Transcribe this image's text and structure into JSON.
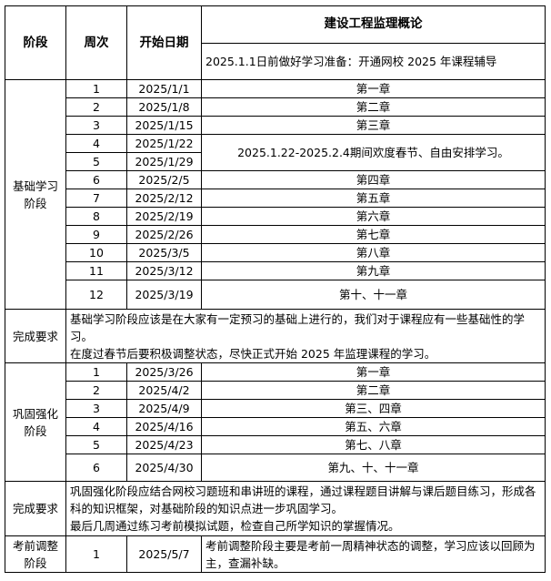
{
  "header": {
    "stage": "阶段",
    "week": "周次",
    "start_date": "开始日期",
    "subject": "建设工程监理概论",
    "prep_note": "2025.1.1日前做好学习准备：开通网校 2025 年课程辅导"
  },
  "basic": {
    "stage": "基础学习阶段",
    "rows": [
      {
        "week": "1",
        "date": "2025/1/1",
        "content": "第一章"
      },
      {
        "week": "2",
        "date": "2025/1/8",
        "content": "第二章"
      },
      {
        "week": "3",
        "date": "2025/1/15",
        "content": "第三章"
      },
      {
        "week": "4",
        "date": "2025/1/22",
        "content": "2025.1.22-2025.2.4期间欢度春节、自由安排学习。"
      },
      {
        "week": "5",
        "date": "2025/1/29"
      },
      {
        "week": "6",
        "date": "2025/2/5",
        "content": "第四章"
      },
      {
        "week": "7",
        "date": "2025/2/12",
        "content": "第五章"
      },
      {
        "week": "8",
        "date": "2025/2/19",
        "content": "第六章"
      },
      {
        "week": "9",
        "date": "2025/2/26",
        "content": "第七章"
      },
      {
        "week": "10",
        "date": "2025/3/5",
        "content": "第八章"
      },
      {
        "week": "11",
        "date": "2025/3/12",
        "content": "第九章"
      },
      {
        "week": "12",
        "date": "2025/3/19",
        "content": "第十、十一章"
      }
    ],
    "req_label": "完成要求",
    "req_line1": "基础学习阶段应该是在大家有一定预习的基础上进行的，我们对于课程应有一些基础性的学习。",
    "req_line2": "在度过春节后要积极调整状态，尽快正式开始 2025 年监理课程的学习。"
  },
  "consolidate": {
    "stage": "巩固强化阶段",
    "rows": [
      {
        "week": "1",
        "date": "2025/3/26",
        "content": "第一章"
      },
      {
        "week": "2",
        "date": "2025/4/2",
        "content": "第二章"
      },
      {
        "week": "3",
        "date": "2025/4/9",
        "content": "第三、四章"
      },
      {
        "week": "4",
        "date": "2025/4/16",
        "content": "第五、六章"
      },
      {
        "week": "5",
        "date": "2025/4/23",
        "content": "第七、八章"
      },
      {
        "week": "6",
        "date": "2025/4/30",
        "content": "第九、十、十一章"
      }
    ],
    "req_label": "完成要求",
    "req_line1": "巩固强化阶段应结合网校习题班和串讲班的课程，通过课程题目讲解与课后题目练习，形成各科的知识框架，对基础阶段的知识点进一步巩固学习。",
    "req_line2": "最后几周通过练习考前模拟试题，检查自己所学知识的掌握情况。"
  },
  "final": {
    "stage": "考前调整阶段",
    "week": "1",
    "date": "2025/5/7",
    "content": "考前调整阶段主要是考前一周精神状态的调整，学习应该以回顾为主，查漏补缺。"
  }
}
